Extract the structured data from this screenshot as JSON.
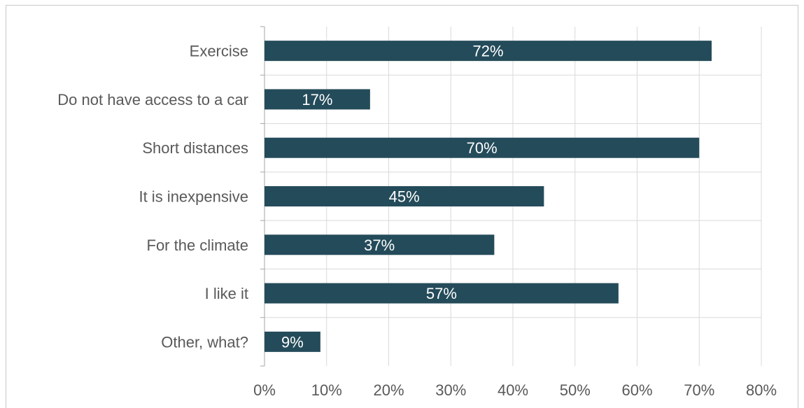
{
  "chart_data": {
    "type": "bar",
    "orientation": "horizontal",
    "categories": [
      "Exercise",
      "Do not have access to a car",
      "Short distances",
      "It is inexpensive",
      "For the climate",
      "I like it",
      "Other, what?"
    ],
    "values": [
      72,
      17,
      70,
      45,
      37,
      57,
      9
    ],
    "data_labels": [
      "72%",
      "17%",
      "70%",
      "45%",
      "37%",
      "57%",
      "9%"
    ],
    "xlim": [
      0,
      80
    ],
    "xticks": [
      0,
      10,
      20,
      30,
      40,
      50,
      60,
      70,
      80
    ],
    "xtick_labels": [
      "0%",
      "10%",
      "20%",
      "30%",
      "40%",
      "50%",
      "60%",
      "70%",
      "80%"
    ],
    "title": "",
    "xlabel": "",
    "ylabel": "",
    "grid": true,
    "bar_color": "#244b5a"
  }
}
